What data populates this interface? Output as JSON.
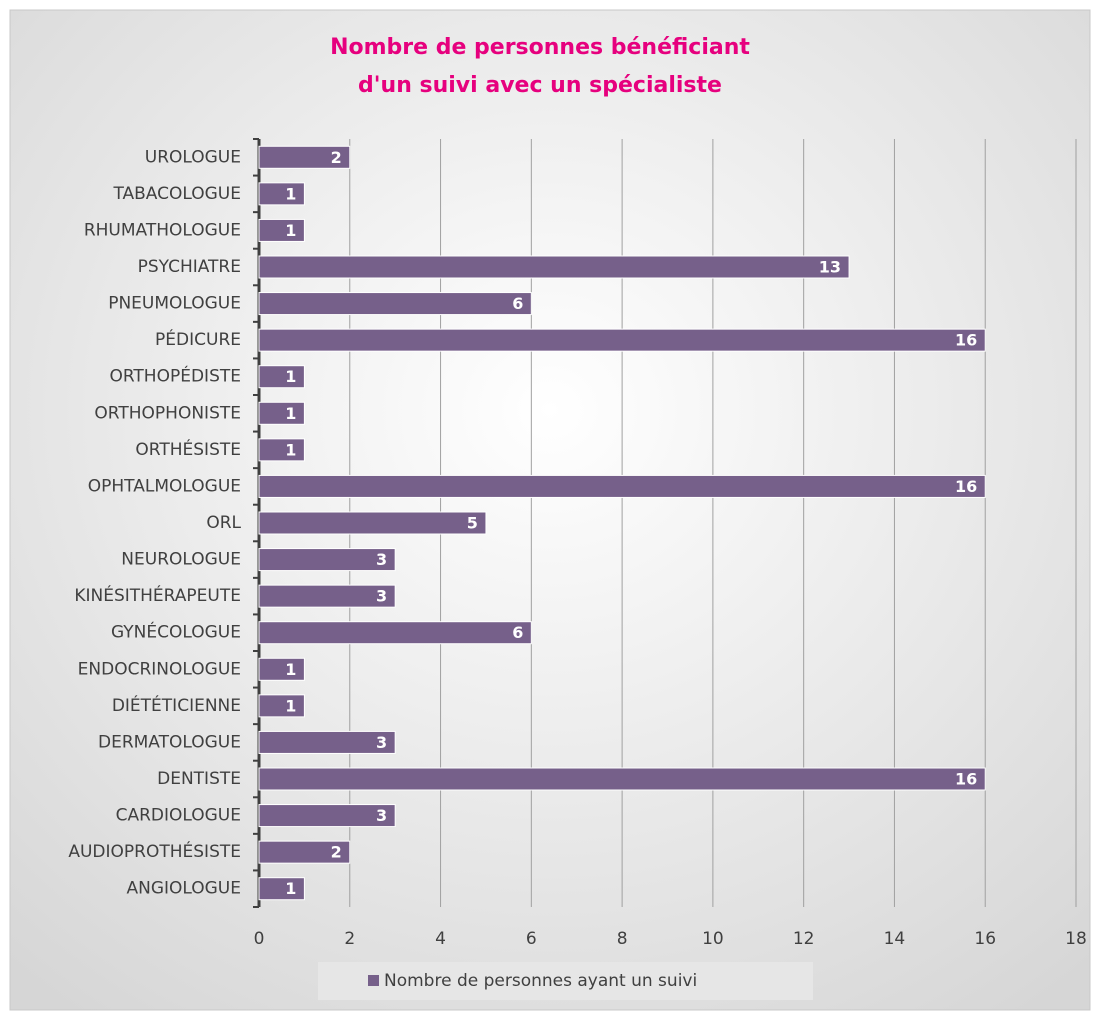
{
  "chart_data": {
    "type": "bar",
    "orientation": "horizontal",
    "title": [
      "Nombre de personnes bénéficiant",
      "d'un suivi avec un spécialiste"
    ],
    "categories": [
      "UROLOGUE",
      "TABACOLOGUE",
      "RHUMATHOLOGUE",
      "PSYCHIATRE",
      "PNEUMOLOGUE",
      "PÉDICURE",
      "ORTHOPÉDISTE",
      "ORTHOPHONISTE",
      "ORTHÉSISTE",
      "OPHTALMOLOGUE",
      "ORL",
      "NEUROLOGUE",
      "KINÉSITHÉRAPEUTE",
      "GYNÉCOLOGUE",
      "ENDOCRINOLOGUE",
      "DIÉTÉTICIENNE",
      "DERMATOLOGUE",
      "DENTISTE",
      "CARDIOLOGUE",
      "AUDIOPROTHÉSISTE",
      "ANGIOLOGUE"
    ],
    "series": [
      {
        "name": "Nombre de personnes ayant un suivi",
        "color": "#76608a",
        "values": [
          2,
          1,
          1,
          13,
          6,
          16,
          1,
          1,
          1,
          16,
          5,
          3,
          3,
          6,
          1,
          1,
          3,
          16,
          3,
          2,
          1
        ]
      }
    ],
    "xlim": [
      0,
      18
    ],
    "xticks": [
      0,
      2,
      4,
      6,
      8,
      10,
      12,
      14,
      16,
      18
    ],
    "grid": true,
    "legend": "bottom"
  }
}
